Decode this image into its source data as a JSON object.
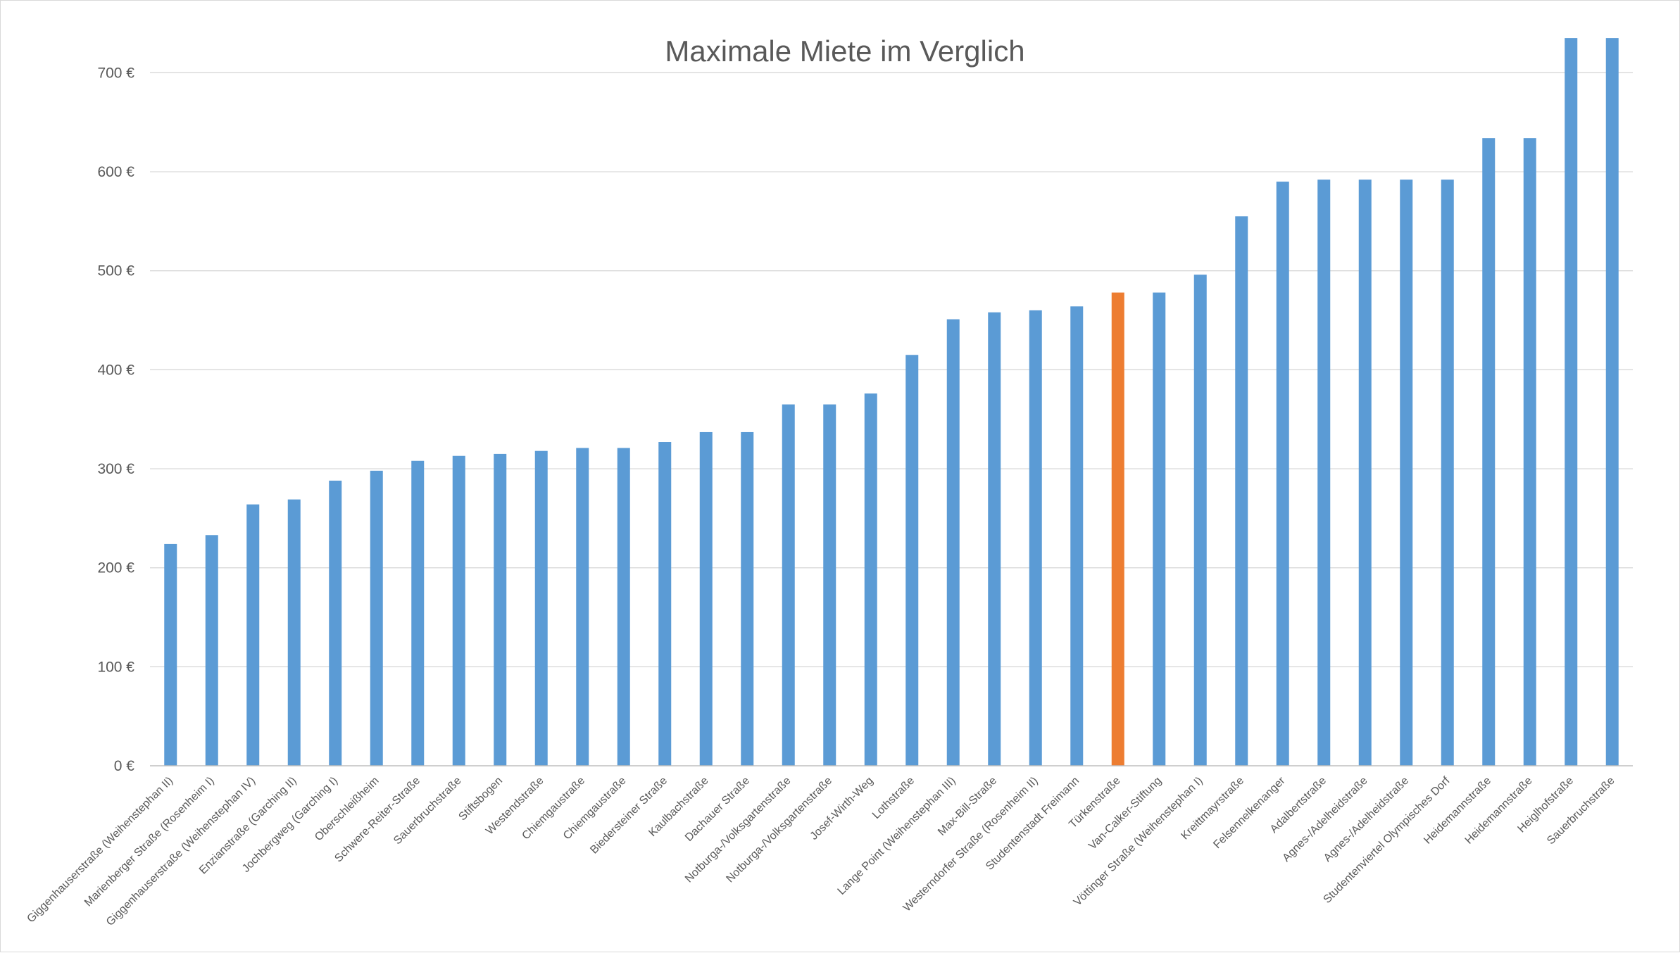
{
  "chart_data": {
    "type": "bar",
    "title": "Maximale Miete im Verglich",
    "xlabel": "",
    "ylabel": "",
    "ylim": [
      0,
      750
    ],
    "yticks": [
      0,
      100,
      200,
      300,
      400,
      500,
      600,
      700
    ],
    "ytick_labels": [
      "0 €",
      "100 €",
      "200 €",
      "300 €",
      "400 €",
      "500 €",
      "600 €",
      "700 €"
    ],
    "grid": true,
    "legend": "none",
    "colors": {
      "default": "#5B9BD5",
      "highlight": "#ED7D31",
      "grid": "#d9d9d9",
      "axis": "#bfbfbf"
    },
    "highlight_category": "Türkenstraße",
    "categories": [
      "Giggenhauserstraße (Weihenstephan II)",
      "Marienberger Straße (Rosenheim I)",
      "Giggenhauserstraße (Weihenstephan IV)",
      "Enzianstraße (Garching II)",
      "Jochbergweg (Garching I)",
      "Oberschleißheim",
      "Schwere-Reiter-Straße",
      "Sauerbruchstraße",
      "Stiftsbogen",
      "Westendstraße",
      "Chiemgaustraße",
      "Chiemgaustraße",
      "Biedersteiner Straße",
      "Kaulbachstraße",
      "Dachauer Straße",
      "Notburga-/Volksgartenstraße",
      "Notburga-/Volksgartenstraße",
      "Josef-Wirth-Weg",
      "Lothstraße",
      "Lange Point (Weihenstephan III)",
      "Max-Bill-Straße",
      "Westerndorfer Straße (Rosenheim II)",
      "Studentenstadt Freimann",
      "Türkenstraße",
      "Van-Calker-Stiftung",
      "Vöttinger Straße (Weihenstephan I)",
      "Kreittmayrstraße",
      "Felsennelkenanger",
      "Adalbertstraße",
      "Agnes-/Adelheidstraße",
      "Agnes-/Adelheidstraße",
      "Studentenviertel Olympisches Dorf",
      "Heidemannstraße",
      "Heidemannstraße",
      "Heiglhofstraße",
      "Sauerbruchstraße"
    ],
    "values": [
      224,
      233,
      264,
      269,
      288,
      298,
      308,
      313,
      315,
      318,
      321,
      321,
      327,
      337,
      337,
      365,
      365,
      376,
      415,
      451,
      458,
      460,
      464,
      478,
      478,
      496,
      555,
      590,
      592,
      592,
      592,
      592,
      634,
      634,
      735,
      735
    ]
  }
}
